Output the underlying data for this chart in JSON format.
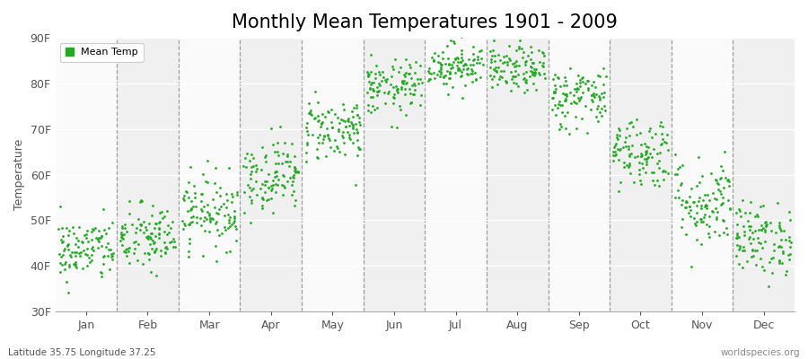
{
  "title": "Monthly Mean Temperatures 1901 - 2009",
  "ylabel": "Temperature",
  "xlabel_labels": [
    "Jan",
    "Feb",
    "Mar",
    "Apr",
    "May",
    "Jun",
    "Jul",
    "Aug",
    "Sep",
    "Oct",
    "Nov",
    "Dec"
  ],
  "ylim": [
    30,
    90
  ],
  "yticks": [
    30,
    40,
    50,
    60,
    70,
    80,
    90
  ],
  "ytick_labels": [
    "30F",
    "40F",
    "50F",
    "60F",
    "70F",
    "80F",
    "90F"
  ],
  "dot_color": "#22aa22",
  "background_color": "#ffffff",
  "band_color_odd": "#f0f0f0",
  "band_color_even": "#fafafa",
  "legend_label": "Mean Temp",
  "bottom_left": "Latitude 35.75 Longitude 37.25",
  "bottom_right": "worldspecies.org",
  "title_fontsize": 15,
  "label_fontsize": 9,
  "tick_fontsize": 9,
  "n_years": 109,
  "monthly_means": [
    43.5,
    46.0,
    52.0,
    60.0,
    70.0,
    79.0,
    84.0,
    83.0,
    77.0,
    65.0,
    54.0,
    46.0
  ],
  "monthly_stds": [
    3.5,
    3.8,
    4.0,
    4.0,
    3.5,
    3.0,
    2.5,
    2.5,
    3.5,
    4.0,
    5.0,
    4.0
  ]
}
